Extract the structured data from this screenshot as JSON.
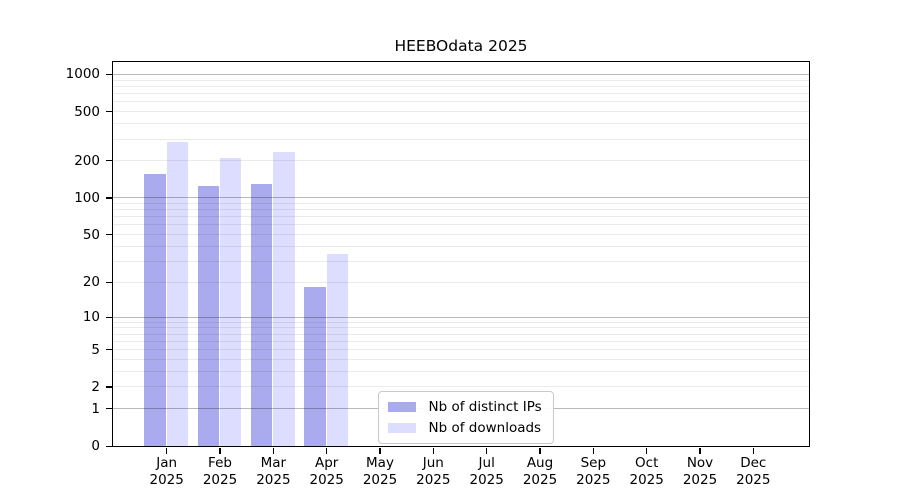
{
  "chart_data": {
    "type": "bar",
    "title": "HEEBOdata 2025",
    "year": "2025",
    "months": [
      "Jan",
      "Feb",
      "Mar",
      "Apr",
      "May",
      "Jun",
      "Jul",
      "Aug",
      "Sep",
      "Oct",
      "Nov",
      "Dec"
    ],
    "series": [
      {
        "name": "Nb of distinct IPs",
        "color": "#aaaaee",
        "values": [
          155,
          124,
          129,
          18,
          0,
          0,
          0,
          0,
          0,
          0,
          0,
          0
        ]
      },
      {
        "name": "Nb of downloads",
        "color": "#ddddff",
        "values": [
          280,
          207,
          234,
          34,
          0,
          0,
          0,
          0,
          0,
          0,
          0,
          0
        ]
      }
    ],
    "y_ticks": [
      0,
      1,
      2,
      5,
      10,
      20,
      50,
      100,
      200,
      500,
      1000
    ],
    "y_scale": "log1p",
    "ylim": [
      0,
      1250
    ],
    "grid": "horizontal, minor log subdivisions",
    "legend_position": "inside lower-center",
    "axis_color": "#000000",
    "background_color": "#ffffff"
  }
}
